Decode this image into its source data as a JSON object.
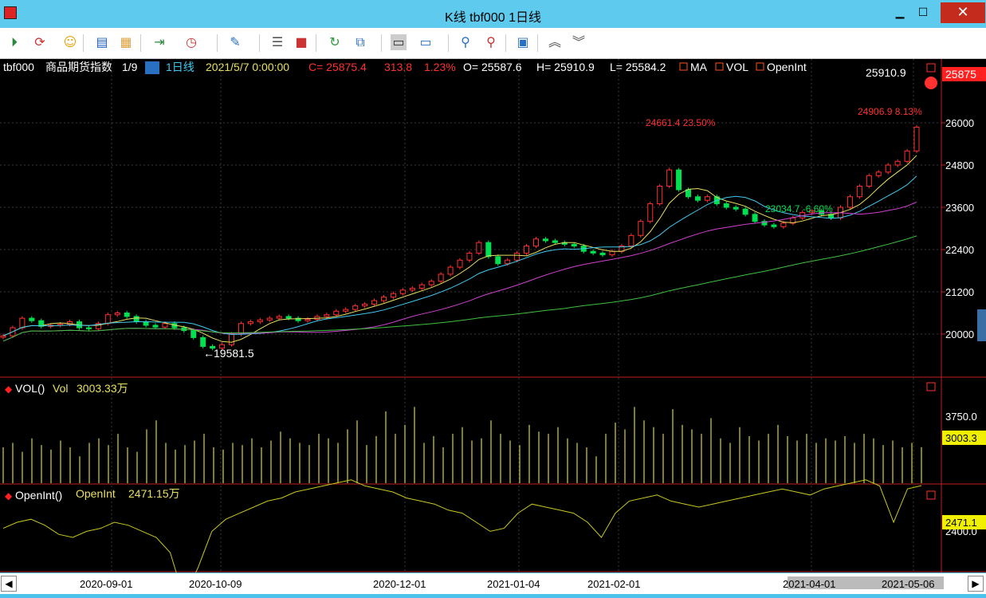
{
  "window": {
    "title": "K线 tbf000 1日线"
  },
  "toolbar": {
    "icons": [
      "play-icon",
      "refresh-icon",
      "smile-icon",
      "window-icon",
      "list-icon",
      "enter-icon",
      "clock-icon",
      "draw-tool-icon",
      "notes-icon",
      "blocks-icon",
      "reload-icon",
      "link-icon",
      "layout-icon",
      "monitor-icon",
      "bikes-icon",
      "bikes-red-icon",
      "calendar-icon",
      "up-icon",
      "down-icon"
    ]
  },
  "header": {
    "symbol": "tbf000",
    "name": "商品期货指数",
    "page": "1/9",
    "period": "1日线",
    "datetime": "2021/5/7 0:00:00",
    "close": "C= 25875.4",
    "change": "313.8",
    "pct": "1.23%",
    "open": "O= 25587.6",
    "high": "H= 25910.9",
    "low": "L= 25584.2",
    "ind_ma": "MA",
    "ind_vol": "VOL",
    "ind_oi": "OpenInt"
  },
  "main_chart": {
    "price_axis": [
      "26000",
      "24800",
      "23600",
      "22400",
      "21200",
      "20000"
    ],
    "last_price": "25875",
    "annotations": {
      "high_label": "25910.9",
      "peak1": "24661.4 23.50%",
      "trough": "23034.7 -6.60%",
      "peak2": "24906.9 8.13%",
      "low_label": "19581.5"
    }
  },
  "vol_panel": {
    "title": "VOL()",
    "label": "Vol",
    "value": "3003.33万",
    "axis": "3750.0",
    "last": "3003.3"
  },
  "oi_panel": {
    "title": "OpenInt()",
    "label": "OpenInt",
    "value": "2471.15万",
    "axis": "2400.0",
    "last": "2471.1"
  },
  "x_axis": [
    "2020-09-01",
    "2020-10-09",
    "2020-12-01",
    "2021-01-04",
    "2021-02-01",
    "2021-04-01",
    "2021-05-06"
  ],
  "colors": {
    "up": "#ff3030",
    "down": "#00e050",
    "ma5": "#e8e060",
    "ma10": "#40c8f0",
    "ma20": "#d040d0",
    "ma60": "#40c040",
    "vol": "#c8c820",
    "bg": "#000000"
  },
  "chart_data": {
    "type": "candlestick",
    "x_tick_labels": [
      "2020-09-01",
      "2020-10-09",
      "2020-12-01",
      "2021-01-04",
      "2021-02-01",
      "2021-04-01",
      "2021-05-06"
    ],
    "price_ticks": [
      20000,
      21200,
      22400,
      23600,
      24800,
      26000
    ],
    "ylim": [
      19000,
      26200
    ],
    "close_path": [
      19950,
      20180,
      20450,
      20380,
      20220,
      20250,
      20280,
      20350,
      20180,
      20150,
      20300,
      20550,
      20600,
      20500,
      20350,
      20250,
      20200,
      20300,
      20180,
      20100,
      19900,
      19650,
      19600,
      19700,
      20000,
      20300,
      20350,
      20400,
      20450,
      20500,
      20450,
      20380,
      20420,
      20500,
      20550,
      20650,
      20700,
      20800,
      20850,
      20950,
      21050,
      21150,
      21250,
      21300,
      21400,
      21500,
      21700,
      21900,
      22100,
      22300,
      22600,
      22200,
      22000,
      22100,
      22300,
      22500,
      22700,
      22650,
      22600,
      22550,
      22500,
      22350,
      22300,
      22250,
      22350,
      22500,
      22800,
      23200,
      23700,
      24200,
      24661,
      24100,
      23900,
      23800,
      23900,
      23700,
      23600,
      23550,
      23400,
      23200,
      23100,
      23050,
      23150,
      23300,
      23450,
      23500,
      23400,
      23300,
      23600,
      23900,
      24200,
      24500,
      24600,
      24800,
      24906,
      25200,
      25875
    ],
    "vol_bars": [
      3000,
      3100,
      2900,
      3200,
      3050,
      2950,
      3150,
      3000,
      2800,
      3100,
      3200,
      3050,
      3300,
      3000,
      2900,
      3400,
      3600,
      3100,
      2950,
      3050,
      3150,
      3300,
      3000,
      2950,
      3100,
      3050,
      3200,
      3000,
      3150,
      3350,
      3200,
      3100,
      3050,
      3300,
      3200,
      3100,
      3400,
      3600,
      3050,
      3250,
      3800,
      3300,
      3500,
      3900,
      3100,
      3250,
      3000,
      3300,
      3450,
      3150,
      3200,
      3600,
      3300,
      3150,
      3050,
      3500,
      3350,
      3300,
      3450,
      3200,
      3100,
      3000,
      2800,
      3300,
      3550,
      3400,
      3900,
      3600,
      3450,
      3300,
      3850,
      3500,
      3400,
      3300,
      3650,
      3200,
      3100,
      3450,
      3250,
      3150,
      3300,
      3500,
      3250,
      3150,
      3300,
      3100,
      3200,
      3150,
      3250,
      3100,
      3300,
      3200,
      3050,
      3150,
      3000,
      3100,
      3003
    ],
    "oi_path": [
      2330,
      2350,
      2360,
      2340,
      2310,
      2300,
      2320,
      2330,
      2350,
      2340,
      2320,
      2300,
      2250,
      2100,
      2200,
      2320,
      2360,
      2380,
      2400,
      2420,
      2430,
      2450,
      2460,
      2470,
      2480,
      2490,
      2470,
      2460,
      2450,
      2430,
      2420,
      2410,
      2390,
      2380,
      2350,
      2320,
      2330,
      2380,
      2410,
      2400,
      2390,
      2380,
      2350,
      2300,
      2380,
      2420,
      2430,
      2440,
      2420,
      2410,
      2400,
      2410,
      2420,
      2430,
      2440,
      2450,
      2460,
      2450,
      2440,
      2460,
      2470,
      2480,
      2490,
      2470,
      2350,
      2460,
      2471
    ]
  }
}
